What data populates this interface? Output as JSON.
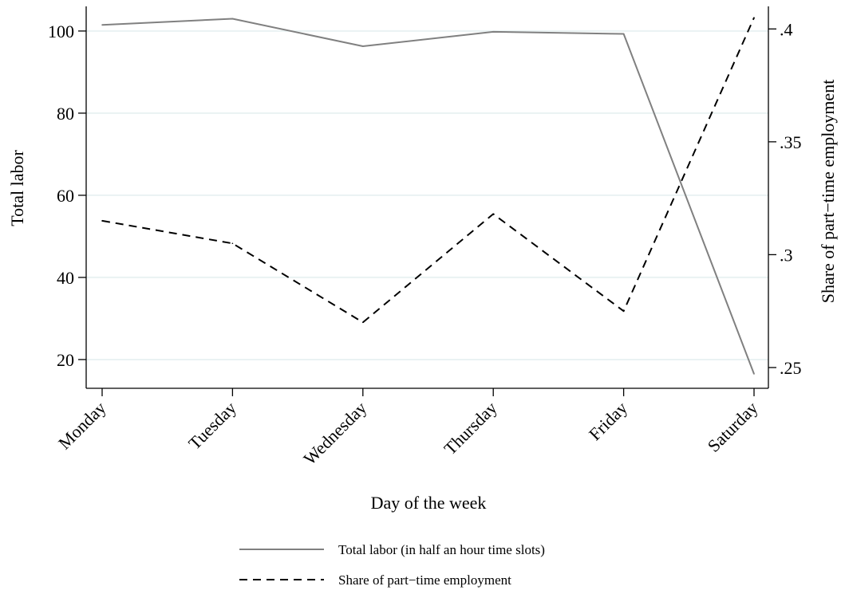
{
  "chart_data": {
    "type": "line",
    "categories": [
      "Monday",
      "Tuesday",
      "Wednesday",
      "Thursday",
      "Friday",
      "Saturday"
    ],
    "xlabel": "Day of the week",
    "ylabel_left": "Total labor",
    "ylabel_right": "Share of part−time employment",
    "ylim_left": [
      13,
      106
    ],
    "ylim_right": [
      0.2408,
      0.41
    ],
    "yticks_left": [
      {
        "value": 20,
        "label": "20"
      },
      {
        "value": 40,
        "label": "40"
      },
      {
        "value": 60,
        "label": "60"
      },
      {
        "value": 80,
        "label": "80"
      },
      {
        "value": 100,
        "label": "100"
      }
    ],
    "yticks_right": [
      {
        "value": 0.25,
        "label": ".25"
      },
      {
        "value": 0.3,
        "label": ".3"
      },
      {
        "value": 0.35,
        "label": ".35"
      },
      {
        "value": 0.4,
        "label": ".4"
      }
    ],
    "grid": true,
    "legend_position": "bottom",
    "series": [
      {
        "name": "Total labor (in half an hour time slots)",
        "axis": "left",
        "style": "solid",
        "color": "#808080",
        "values": [
          101.5,
          103,
          96.3,
          99.8,
          99.3,
          16.5
        ]
      },
      {
        "name": "Share of part−time employment",
        "axis": "right",
        "style": "dashed",
        "color": "#000000",
        "values": [
          0.315,
          0.305,
          0.27,
          0.318,
          0.275,
          0.405
        ]
      }
    ]
  }
}
